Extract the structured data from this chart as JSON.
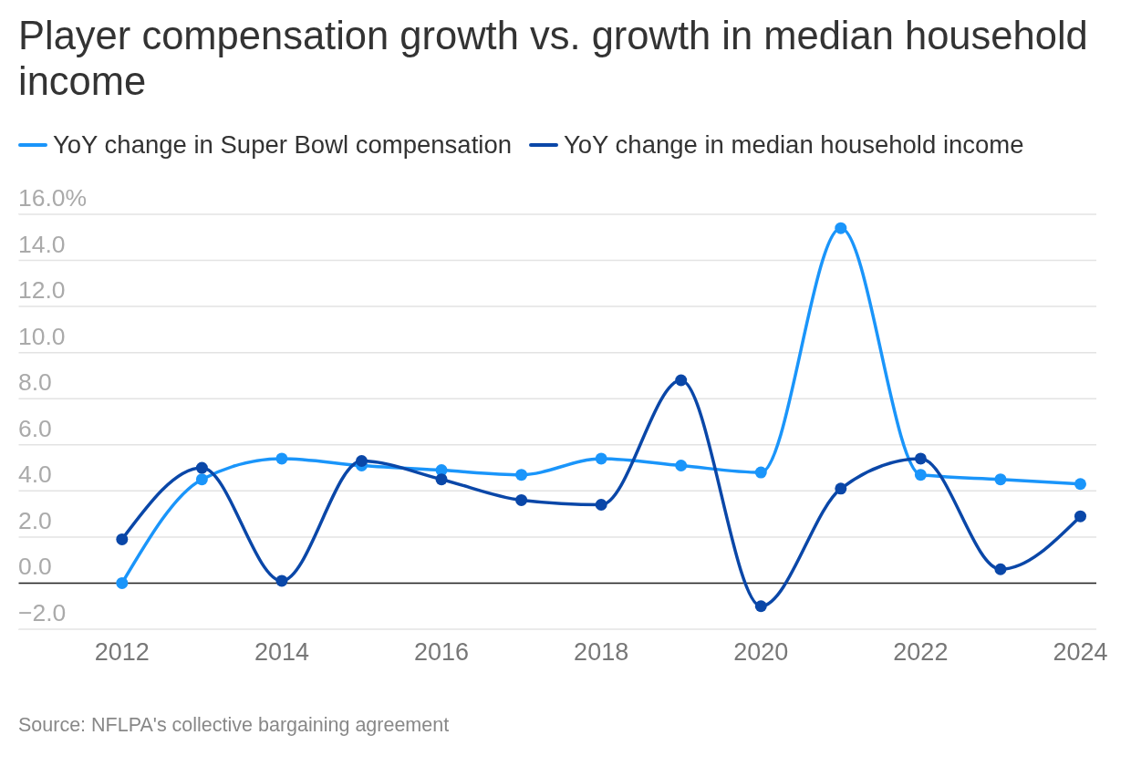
{
  "chart_data": {
    "type": "line",
    "title": "Player compensation growth vs. growth in median household income",
    "x": [
      2012,
      2013,
      2014,
      2015,
      2016,
      2017,
      2018,
      2019,
      2020,
      2021,
      2022,
      2023,
      2024
    ],
    "series": [
      {
        "name": "YoY change in Super Bowl compensation",
        "color": "#1a95fa",
        "values": [
          0.0,
          4.5,
          5.4,
          5.1,
          4.9,
          4.7,
          5.4,
          5.1,
          4.8,
          15.4,
          4.7,
          4.5,
          4.3
        ]
      },
      {
        "name": "YoY change in median household income",
        "color": "#0a47a8",
        "values": [
          1.9,
          5.0,
          0.1,
          5.3,
          4.5,
          3.6,
          3.4,
          8.8,
          -1.0,
          4.1,
          5.4,
          0.6,
          2.9
        ]
      }
    ],
    "xlim": [
      2010.7,
      2024.2
    ],
    "xticks": [
      2012,
      2014,
      2016,
      2018,
      2020,
      2022,
      2024
    ],
    "ylim": [
      -2,
      16
    ],
    "yticks": [
      {
        "value": -2,
        "label": "−2.0"
      },
      {
        "value": 0,
        "label": "0.0"
      },
      {
        "value": 2,
        "label": "2.0"
      },
      {
        "value": 4,
        "label": "4.0"
      },
      {
        "value": 6,
        "label": "6.0"
      },
      {
        "value": 8,
        "label": "8.0"
      },
      {
        "value": 10,
        "label": "10.0"
      },
      {
        "value": 12,
        "label": "12.0"
      },
      {
        "value": 14,
        "label": "14.0"
      },
      {
        "value": 16,
        "label": "16.0%"
      }
    ],
    "ref_lines": [
      {
        "axis": "y",
        "value": 0,
        "color": "#222222"
      }
    ],
    "grid": "y",
    "legend": "top left",
    "marker": "circle",
    "line_style": "solid",
    "annotations": [
      "Source: NFLPA's collective bargaining agreement"
    ]
  }
}
